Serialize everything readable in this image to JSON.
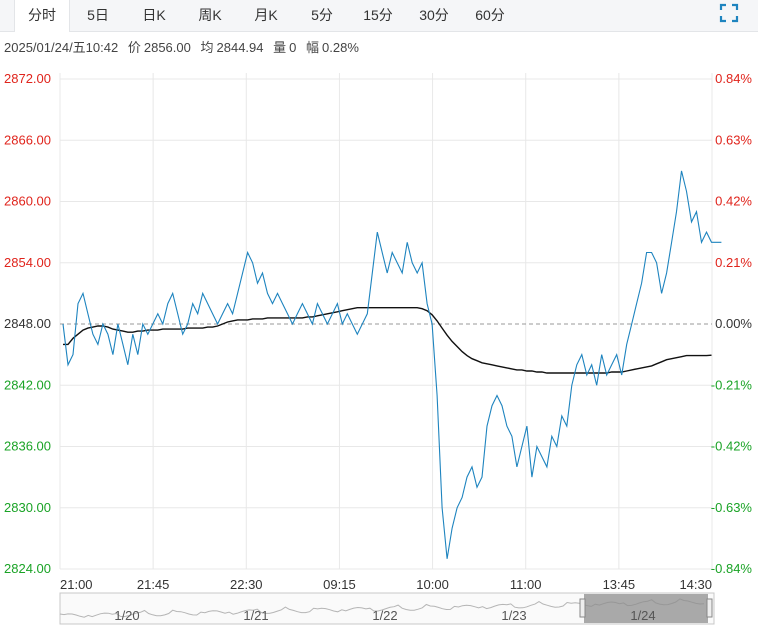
{
  "tabs": [
    "分时",
    "5日",
    "日K",
    "周K",
    "月K",
    "5分",
    "15分",
    "30分",
    "60分"
  ],
  "active_tab": 0,
  "expand_icon": "fullscreen-icon",
  "info": {
    "datetime": "2025/01/24/五10:42",
    "price_label": "价",
    "price": "2856.00",
    "avg_label": "均",
    "avg": "2844.94",
    "vol_label": "量",
    "vol": "0",
    "chg_label": "幅",
    "chg": "0.28%"
  },
  "colors": {
    "up": "#e0241c",
    "down": "#1aa326",
    "price_line": "#1e84bf",
    "avg_line": "#111111",
    "grid": "#e8e8e8"
  },
  "chart_data": {
    "type": "line",
    "base_price": 2848.0,
    "ylim": [
      2824.0,
      2872.0
    ],
    "y_ticks_left": [
      "2872.00",
      "2866.00",
      "2860.00",
      "2854.00",
      "2848.00",
      "2842.00",
      "2836.00",
      "2830.00",
      "2824.00"
    ],
    "y_ticks_right": [
      "0.84%",
      "0.63%",
      "0.42%",
      "0.21%",
      "0.00%",
      "-0.21%",
      "-0.42%",
      "-0.63%",
      "-0.84%"
    ],
    "x_ticks": [
      "21:00",
      "21:45",
      "22:30",
      "09:15",
      "10:00",
      "11:00",
      "13:45",
      "14:30"
    ],
    "navigator_labels": [
      "1/20",
      "1/21",
      "1/22",
      "1/23",
      "1/24"
    ],
    "series": [
      {
        "key": "price",
        "values": [
          2848,
          2844,
          2845,
          2850,
          2851,
          2849,
          2847,
          2846,
          2848,
          2847,
          2845,
          2848,
          2846,
          2844,
          2847,
          2845,
          2848,
          2847,
          2848,
          2849,
          2848,
          2850,
          2851,
          2849,
          2847,
          2848,
          2850,
          2849,
          2851,
          2850,
          2849,
          2848,
          2849,
          2850,
          2849,
          2851,
          2853,
          2855,
          2854,
          2852,
          2853,
          2851,
          2850,
          2851,
          2850,
          2849,
          2848,
          2849,
          2850,
          2849,
          2848,
          2850,
          2849,
          2848,
          2849,
          2850,
          2848,
          2849,
          2848,
          2847,
          2848,
          2849,
          2853,
          2857,
          2855,
          2853,
          2855,
          2854,
          2853,
          2856,
          2854,
          2853,
          2854,
          2850,
          2848,
          2841,
          2830,
          2825,
          2828,
          2830,
          2831,
          2833,
          2834,
          2832,
          2833,
          2838,
          2840,
          2841,
          2840,
          2838,
          2837,
          2834,
          2836,
          2838,
          2833,
          2836,
          2835,
          2834,
          2837,
          2836,
          2839,
          2838,
          2842,
          2844,
          2845,
          2843,
          2844,
          2842,
          2845,
          2843,
          2844,
          2845,
          2843,
          2846,
          2848,
          2850,
          2852,
          2855,
          2855,
          2854,
          2851,
          2853,
          2856,
          2859,
          2863,
          2861,
          2858,
          2859,
          2856,
          2857,
          2856,
          2856,
          2856
        ],
        "intraday_approx": true
      },
      {
        "key": "avg",
        "values": [
          2846,
          2846,
          2846.6,
          2847,
          2847.4,
          2847.6,
          2847.7,
          2847.8,
          2847.8,
          2847.7,
          2847.5,
          2847.4,
          2847.3,
          2847.2,
          2847.2,
          2847.3,
          2847.3,
          2847.4,
          2847.4,
          2847.4,
          2847.5,
          2847.5,
          2847.5,
          2847.5,
          2847.5,
          2847.6,
          2847.6,
          2847.6,
          2847.6,
          2847.7,
          2847.7,
          2847.8,
          2848,
          2848.2,
          2848.3,
          2848.4,
          2848.4,
          2848.4,
          2848.5,
          2848.5,
          2848.5,
          2848.6,
          2848.6,
          2848.6,
          2848.6,
          2848.6,
          2848.6,
          2848.6,
          2848.6,
          2848.7,
          2848.7,
          2848.8,
          2848.9,
          2849,
          2849.1,
          2849.2,
          2849.3,
          2849.4,
          2849.5,
          2849.6,
          2849.6,
          2849.6,
          2849.6,
          2849.6,
          2849.6,
          2849.6,
          2849.6,
          2849.6,
          2849.6,
          2849.6,
          2849.6,
          2849.6,
          2849.5,
          2849.3,
          2848.9,
          2848.3,
          2847.6,
          2846.9,
          2846.3,
          2845.8,
          2845.3,
          2844.9,
          2844.6,
          2844.4,
          2844.2,
          2844.1,
          2844,
          2843.9,
          2843.8,
          2843.7,
          2843.6,
          2843.5,
          2843.5,
          2843.4,
          2843.4,
          2843.3,
          2843.3,
          2843.2,
          2843.2,
          2843.2,
          2843.2,
          2843.2,
          2843.2,
          2843.2,
          2843.2,
          2843.2,
          2843.2,
          2843.2,
          2843.2,
          2843.2,
          2843.3,
          2843.3,
          2843.3,
          2843.4,
          2843.5,
          2843.6,
          2843.7,
          2843.8,
          2843.9,
          2844.1,
          2844.3,
          2844.5,
          2844.6,
          2844.7,
          2844.8,
          2844.9,
          2844.9,
          2844.9,
          2844.9,
          2844.9,
          2844.94
        ]
      }
    ]
  }
}
